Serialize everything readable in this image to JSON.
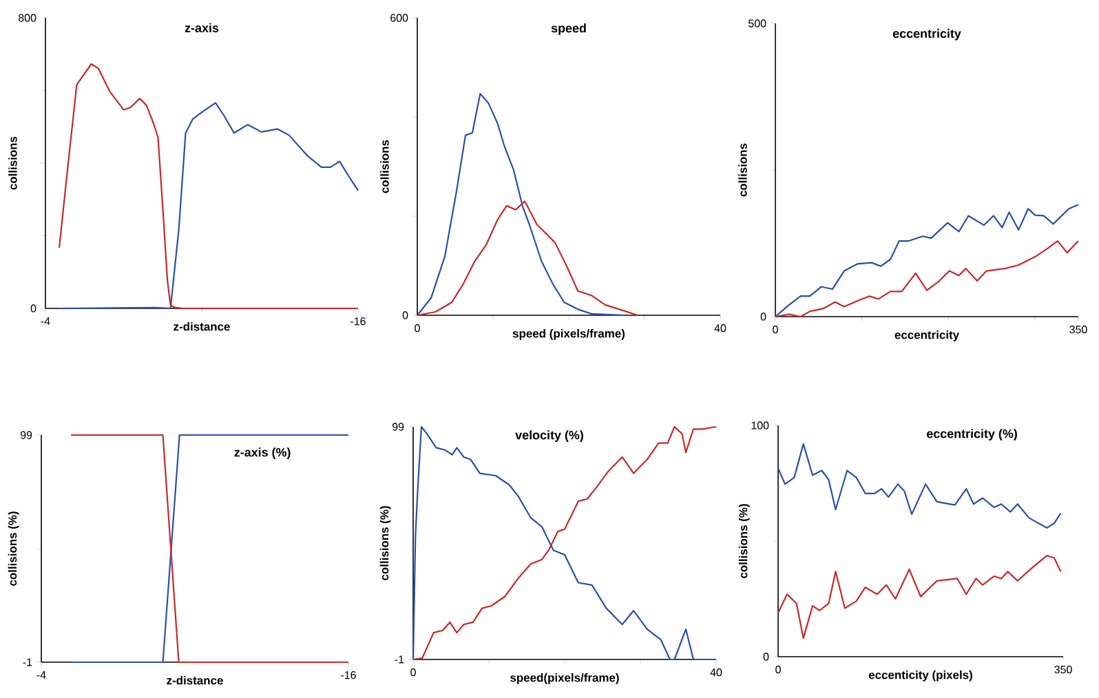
{
  "chart_data": [
    {
      "type": "line",
      "title": "z-axis",
      "xlabel": "z-distance",
      "ylabel": "collisions",
      "xlim": [
        -4,
        -16
      ],
      "ylim": [
        0,
        800
      ],
      "xticks": [
        -4,
        {
          "value": -10,
          "label": null
        },
        -16
      ],
      "yticks": [
        0,
        {
          "value": 200,
          "label": null
        },
        {
          "value": 400,
          "label": null
        },
        {
          "value": 600,
          "label": null
        },
        800
      ],
      "series": [
        {
          "color": "#2a4fa8",
          "x": [
            -4.53,
            -8.24,
            -8.8,
            -9.12,
            -9.38,
            -9.65,
            -10,
            -10.53,
            -10.88,
            -11.24,
            -11.76,
            -12.29,
            -12.91,
            -13.35,
            -14.06,
            -14.59,
            -14.94,
            -15.29,
            -15.65,
            -16
          ],
          "values": [
            0,
            2,
            0,
            218,
            483,
            521,
            540,
            566,
            528,
            483,
            506,
            486,
            494,
            477,
            420,
            389,
            389,
            405,
            363,
            325
          ]
        },
        {
          "color": "#c8282a",
          "x": [
            -4.53,
            -4.79,
            -5.2,
            -5.76,
            -6.03,
            -6.47,
            -7.0,
            -7.26,
            -7.62,
            -7.88,
            -8.15,
            -8.32,
            -8.5,
            -8.68,
            -8.8,
            -8.94,
            -9.29,
            -16
          ],
          "values": [
            167,
            344,
            616,
            673,
            661,
            597,
            547,
            553,
            578,
            559,
            509,
            471,
            281,
            78,
            9,
            3,
            0,
            0
          ]
        }
      ]
    },
    {
      "type": "line",
      "title": "speed",
      "xlabel": "speed (pixels/frame)",
      "ylabel": "collisions",
      "xlim": [
        0,
        40
      ],
      "ylim": [
        0,
        600
      ],
      "xticks": [
        0,
        {
          "value": 10,
          "label": null
        },
        {
          "value": 20,
          "label": null
        },
        {
          "value": 30,
          "label": null
        },
        40
      ],
      "yticks": [
        0,
        {
          "value": 200,
          "label": null
        },
        {
          "value": 400,
          "label": null
        },
        600
      ],
      "series": [
        {
          "color": "#2a4fa8",
          "x": [
            0,
            1.82,
            3.64,
            5.15,
            6.36,
            7.27,
            8.3,
            9.39,
            10.6,
            11.5,
            12.7,
            13.9,
            14.8,
            16.4,
            17.9,
            19.4,
            21.2,
            23,
            27.3
          ],
          "values": [
            0,
            35,
            119,
            248,
            363,
            368,
            447,
            428,
            387,
            341,
            294,
            220,
            183,
            109,
            63,
            26,
            12,
            3,
            0
          ]
        },
        {
          "color": "#c8282a",
          "x": [
            0,
            2.42,
            4.55,
            6.06,
            7.58,
            9.09,
            10.6,
            11.8,
            13.0,
            14.2,
            15.8,
            17.0,
            18.2,
            19.7,
            21.2,
            23,
            24.8,
            26.7,
            29.1
          ],
          "values": [
            0,
            7,
            26,
            63,
            109,
            142,
            193,
            221,
            213,
            230,
            183,
            165,
            146,
            100,
            49,
            40,
            21,
            12,
            0
          ]
        }
      ]
    },
    {
      "type": "line",
      "title": "eccentricity",
      "xlabel": "eccentricity",
      "ylabel": "collisions",
      "xlim": [
        0,
        350
      ],
      "ylim": [
        0,
        500
      ],
      "xticks": [
        0,
        {
          "value": 100,
          "label": null
        },
        {
          "value": 200,
          "label": null
        },
        {
          "value": 300,
          "label": null
        },
        350
      ],
      "yticks": [
        0,
        {
          "value": 250,
          "label": null
        },
        500
      ],
      "series": [
        {
          "color": "#2a4fa8",
          "x": [
            0,
            15.9,
            29.2,
            39.8,
            53,
            66,
            79.5,
            95,
            111,
            122,
            133,
            143,
            154,
            170,
            180,
            199,
            212,
            223,
            241,
            252,
            262,
            270,
            281,
            292,
            300,
            310,
            321,
            339,
            350
          ],
          "values": [
            0,
            20,
            35,
            35,
            51,
            47,
            78,
            90,
            92,
            86,
            98,
            129,
            129,
            137,
            134,
            160,
            145,
            172,
            156,
            172,
            152,
            178,
            148,
            184,
            173,
            172,
            158,
            184,
            191
          ]
        },
        {
          "color": "#c8282a",
          "x": [
            0,
            15.9,
            29.2,
            39.8,
            55.7,
            69,
            79.5,
            95,
            108.7,
            119,
            133,
            146,
            162,
            175,
            188,
            201,
            212,
            220,
            233,
            244,
            265,
            281,
            300,
            315,
            326,
            337,
            350
          ],
          "values": [
            0,
            4,
            0,
            9,
            14,
            25,
            17,
            27,
            35,
            30,
            43,
            43,
            74,
            45,
            59,
            78,
            70,
            82,
            61,
            78,
            82,
            88,
            102,
            117,
            129,
            109,
            129
          ]
        }
      ]
    },
    {
      "type": "line",
      "title": "z-axis (%)",
      "xlabel": "z-distance",
      "ylabel": "collisions (%)",
      "xlim": [
        -4,
        -16
      ],
      "ylim": [
        -1,
        99
      ],
      "xticks": [
        -4,
        {
          "value": -10,
          "label": null
        },
        -16
      ],
      "yticks": [
        -1,
        {
          "value": 49,
          "label": null
        },
        99
      ],
      "series": [
        {
          "color": "#2a4fa8",
          "x": [
            -5.16,
            -8.75,
            -9.4,
            -16
          ],
          "values": [
            -1,
            -1,
            99,
            99
          ]
        },
        {
          "color": "#c8282a",
          "x": [
            -5.16,
            -8.75,
            -9.37,
            -16
          ],
          "values": [
            99,
            99,
            -1,
            -1
          ]
        }
      ]
    },
    {
      "type": "line",
      "title": "velocity (%)",
      "xlabel": "speed(pixels/frame)",
      "ylabel": "collisions (%)",
      "xlim": [
        0,
        40
      ],
      "ylim": [
        -1,
        99
      ],
      "xticks": [
        0,
        {
          "value": 10,
          "label": null
        },
        {
          "value": 20,
          "label": null
        },
        {
          "value": 30,
          "label": null
        },
        40
      ],
      "yticks": [
        -1,
        99
      ],
      "series": [
        {
          "color": "#2a4fa8",
          "x": [
            0,
            0.3,
            0.6,
            1.09,
            1.82,
            3.03,
            4.24,
            5.15,
            5.76,
            6.67,
            7.58,
            8.8,
            10.9,
            12.7,
            13.9,
            15.5,
            17.0,
            18.5,
            20,
            21.8,
            23.6,
            25.5,
            27.6,
            29.1,
            30.9,
            32.7,
            33.9,
            34.5,
            36,
            37,
            40
          ],
          "values": [
            -1,
            52,
            72,
            99,
            96,
            90,
            89,
            87,
            90,
            86,
            85,
            79,
            78,
            74,
            69,
            60,
            56,
            46,
            44,
            32,
            31,
            21,
            14,
            20,
            12,
            7.5,
            -1,
            -1,
            12,
            -1,
            -1
          ]
        },
        {
          "color": "#c8282a",
          "x": [
            0,
            1.2,
            2.7,
            3.9,
            4.85,
            5.76,
            6.67,
            7.9,
            9.1,
            10.3,
            12.1,
            13.9,
            15.5,
            17,
            17.9,
            19.1,
            20,
            21.8,
            23,
            24.2,
            25.8,
            27.6,
            29.1,
            30.9,
            32.4,
            33.6,
            34.5,
            35.5,
            36,
            37,
            38.2,
            40
          ],
          "values": [
            -1,
            -0.4,
            10.5,
            11.5,
            15,
            10.5,
            14,
            15,
            21,
            22,
            26,
            34,
            40,
            42,
            46,
            54,
            55,
            67,
            68,
            73,
            80,
            86,
            79,
            85,
            92,
            92,
            99,
            96,
            88,
            98,
            98,
            99
          ]
        }
      ]
    },
    {
      "type": "line",
      "title": "eccentricity (%)",
      "xlabel": "eccenticity (pixels)",
      "ylabel": "collisions (%)",
      "xlim": [
        0,
        350
      ],
      "ylim": [
        0,
        100
      ],
      "xticks": [
        0,
        350
      ],
      "yticks": [
        0,
        {
          "value": 50,
          "label": null
        },
        100
      ],
      "series": [
        {
          "color": "#2a4fa8",
          "x": [
            0,
            8.5,
            19.8,
            31,
            42.3,
            53.6,
            62,
            70.6,
            84.7,
            96,
            107,
            118.5,
            127,
            135.5,
            147,
            155,
            164,
            181,
            195,
            217,
            231,
            240,
            251,
            265,
            274,
            285,
            294,
            308,
            330,
            339,
            347
          ],
          "values": [
            81.5,
            74.6,
            77.5,
            92,
            78.5,
            80.5,
            76.5,
            63.6,
            80.5,
            77.5,
            70.6,
            70.6,
            72.6,
            69,
            74.6,
            71.6,
            61.6,
            74.6,
            67,
            65.6,
            72.6,
            66,
            68.6,
            64.6,
            66,
            62.6,
            66,
            60,
            55.7,
            57.7,
            62
          ]
        },
        {
          "color": "#c8282a",
          "x": [
            0,
            11,
            22.6,
            31,
            42.3,
            50.8,
            62,
            70.6,
            81.9,
            96,
            107,
            121.6,
            133,
            144,
            161,
            175,
            195,
            220,
            231,
            243,
            251,
            265,
            274,
            282,
            294,
            313,
            330,
            339,
            347
          ],
          "values": [
            19,
            27,
            23,
            8,
            22,
            20,
            23,
            36.8,
            21,
            24,
            30,
            27,
            31,
            25,
            37.8,
            26,
            32.8,
            33.8,
            27,
            33.8,
            31,
            34.8,
            33.8,
            36.8,
            32.8,
            38.8,
            43.7,
            42.7,
            36.8
          ]
        }
      ]
    }
  ]
}
